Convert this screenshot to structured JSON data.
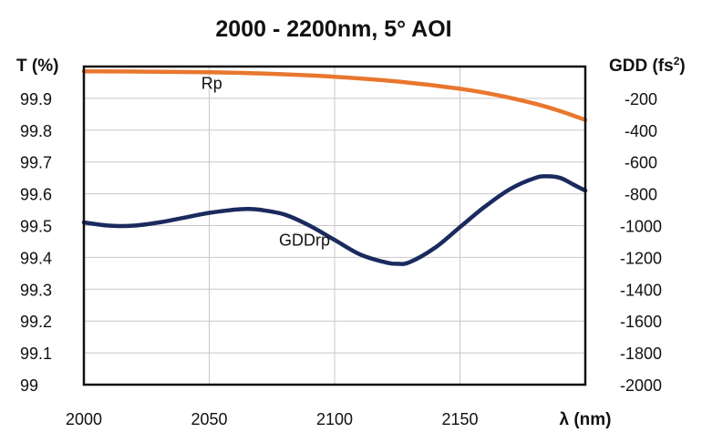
{
  "chart_data": {
    "type": "line",
    "title": "2000 - 2200nm, 5° AOI",
    "xlabel": "λ (nm)",
    "ylabel_left": "T (%)",
    "ylabel_right_base": "GDD (fs",
    "ylabel_right_sup": "2",
    "ylabel_right_end": ")",
    "xlim": [
      2000,
      2200
    ],
    "ylim_left": [
      99,
      100
    ],
    "ylim_right": [
      -2000,
      0
    ],
    "x_ticks": [
      "2000",
      "2050",
      "2100",
      "2150"
    ],
    "x_tick_values": [
      2000,
      2050,
      2100,
      2150
    ],
    "y_left_ticks": [
      "99",
      "99.1",
      "99.2",
      "99.3",
      "99.4",
      "99.5",
      "99.6",
      "99.7",
      "99.8",
      "99.9"
    ],
    "y_left_tick_values": [
      99,
      99.1,
      99.2,
      99.3,
      99.4,
      99.5,
      99.6,
      99.7,
      99.8,
      99.9
    ],
    "y_right_ticks": [
      "-200",
      "-400",
      "-600",
      "-800",
      "-1000",
      "-1200",
      "-1400",
      "-1600",
      "-1800",
      "-2000"
    ],
    "y_right_tick_values": [
      -200,
      -400,
      -600,
      -800,
      -1000,
      -1200,
      -1400,
      -1600,
      -1800,
      -2000
    ],
    "grid": true,
    "series": [
      {
        "name": "Rp",
        "axis": "left",
        "color": "#e8772e",
        "x": [
          2000,
          2025,
          2050,
          2075,
          2100,
          2125,
          2150,
          2165,
          2180,
          2190,
          2200
        ],
        "values": [
          99.985,
          99.984,
          99.982,
          99.977,
          99.968,
          99.953,
          99.93,
          99.91,
          99.883,
          99.86,
          99.832
        ]
      },
      {
        "name": "GDDrp",
        "axis": "right",
        "color": "#1b2a5e",
        "x": [
          2000,
          2010,
          2020,
          2030,
          2040,
          2050,
          2060,
          2065,
          2070,
          2080,
          2090,
          2100,
          2110,
          2120,
          2125,
          2130,
          2140,
          2150,
          2160,
          2170,
          2180,
          2185,
          2190,
          2195,
          2200
        ],
        "values": [
          -980,
          -1000,
          -1000,
          -980,
          -950,
          -920,
          -900,
          -895,
          -900,
          -930,
          -1000,
          -1090,
          -1180,
          -1230,
          -1240,
          -1230,
          -1140,
          -1010,
          -880,
          -770,
          -700,
          -690,
          -700,
          -740,
          -780
        ]
      }
    ],
    "labels": [
      {
        "text": "Rp",
        "x": 2051,
        "axis": "left",
        "y": 99.93
      },
      {
        "text": "GDDrp",
        "x": 2088,
        "axis": "right",
        "y": -1125
      }
    ]
  }
}
